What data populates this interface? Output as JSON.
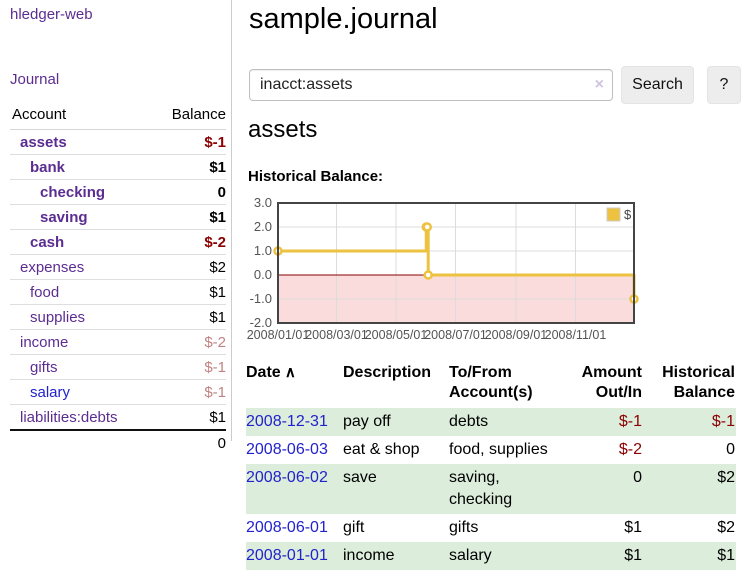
{
  "app": {
    "brand": "hledger-web",
    "nav_journal": "Journal"
  },
  "sidebar": {
    "table_headers": {
      "account": "Account",
      "balance": "Balance"
    },
    "accounts": [
      {
        "name": "assets",
        "indent": 1,
        "selected": true,
        "balance": "$-1",
        "balance_tone": "neg-strong"
      },
      {
        "name": "bank",
        "indent": 2,
        "selected": true,
        "balance": "$1",
        "balance_tone": "pos"
      },
      {
        "name": "checking",
        "indent": 3,
        "selected": true,
        "balance": "0",
        "balance_tone": "pos"
      },
      {
        "name": "saving",
        "indent": 3,
        "selected": true,
        "balance": "$1",
        "balance_tone": "pos"
      },
      {
        "name": "cash",
        "indent": 2,
        "selected": true,
        "balance": "$-2",
        "balance_tone": "neg-strong"
      },
      {
        "name": "expenses",
        "indent": 1,
        "selected": false,
        "balance": "$2",
        "balance_tone": "pos"
      },
      {
        "name": "food",
        "indent": 2,
        "selected": false,
        "balance": "$1",
        "balance_tone": "pos"
      },
      {
        "name": "supplies",
        "indent": 2,
        "selected": false,
        "balance": "$1",
        "balance_tone": "pos"
      },
      {
        "name": "income",
        "indent": 1,
        "selected": false,
        "balance": "$-2",
        "balance_tone": "neg-muted"
      },
      {
        "name": "gifts",
        "indent": 2,
        "selected": false,
        "balance": "$-1",
        "balance_tone": "neg-muted"
      },
      {
        "name": "salary",
        "indent": 2,
        "selected": false,
        "balance": "$-1",
        "balance_tone": "neg-muted",
        "link_color": "blue"
      },
      {
        "name": "liabilities:debts",
        "indent": 1,
        "selected": false,
        "balance": "$1",
        "balance_tone": "pos"
      }
    ],
    "total": "0"
  },
  "header": {
    "title": "sample.journal"
  },
  "search": {
    "value": "inacct:assets",
    "clear_icon": "×",
    "button": "Search",
    "help_button": "?"
  },
  "account_page": {
    "heading": "assets",
    "chart_label": "Historical Balance:"
  },
  "chart_data": {
    "type": "line",
    "step": true,
    "title": "Historical Balance",
    "x_range": [
      "2008-01-01",
      "2008-12-31"
    ],
    "y_range": [
      -2,
      3
    ],
    "y_ticks": [
      3,
      2,
      1,
      0,
      -1,
      -2
    ],
    "x_ticks": [
      {
        "date": "2008-01-01",
        "label": "2008/01/01"
      },
      {
        "date": "2008-03-01",
        "label": "2008/03/01"
      },
      {
        "date": "2008-05-01",
        "label": "2008/05/01"
      },
      {
        "date": "2008-07-01",
        "label": "2008/07/01"
      },
      {
        "date": "2008-09-01",
        "label": "2008/09/01"
      },
      {
        "date": "2008-11-01",
        "label": "2008/11/01"
      }
    ],
    "series": [
      {
        "name": "$",
        "color": "#edc240",
        "points": [
          [
            "2008-01-01",
            1
          ],
          [
            "2008-06-01",
            2
          ],
          [
            "2008-06-02",
            2
          ],
          [
            "2008-06-03",
            0
          ],
          [
            "2008-12-31",
            -1
          ]
        ]
      }
    ],
    "legend_position": "top-right",
    "colors": {
      "negative_fill": "#fbdcdc",
      "zero_line": "#8b0000",
      "grid": "#dcdcdc",
      "border": "#444444",
      "tick_text": "#545454",
      "legend_text": "#444444"
    }
  },
  "register": {
    "columns": [
      {
        "lines": [
          "Date"
        ],
        "sort_arrow": "∧"
      },
      {
        "lines": [
          "Description"
        ]
      },
      {
        "lines": [
          "To/From",
          "Account(s)"
        ]
      },
      {
        "lines": [
          "Amount",
          "Out/In"
        ],
        "align": "right",
        "cls": "amt"
      },
      {
        "lines": [
          "Historical",
          "Balance"
        ],
        "align": "right",
        "cls": "bal"
      }
    ],
    "rows": [
      {
        "date": "2008-12-31",
        "description": "pay off",
        "accounts": "debts",
        "amount": "$-1",
        "amount_negative": true,
        "balance": "$-1",
        "balance_negative": true
      },
      {
        "date": "2008-06-03",
        "description": "eat & shop",
        "accounts": "food, supplies",
        "amount": "$-2",
        "amount_negative": true,
        "balance": "0",
        "balance_negative": false
      },
      {
        "date": "2008-06-02",
        "description": "save",
        "accounts": "saving, checking",
        "amount": "0",
        "amount_negative": false,
        "balance": "$2",
        "balance_negative": false
      },
      {
        "date": "2008-06-01",
        "description": "gift",
        "accounts": "gifts",
        "amount": "$1",
        "amount_negative": false,
        "balance": "$2",
        "balance_negative": false
      },
      {
        "date": "2008-01-01",
        "description": "income",
        "accounts": "salary",
        "amount": "$1",
        "amount_negative": false,
        "balance": "$1",
        "balance_negative": false
      }
    ]
  }
}
